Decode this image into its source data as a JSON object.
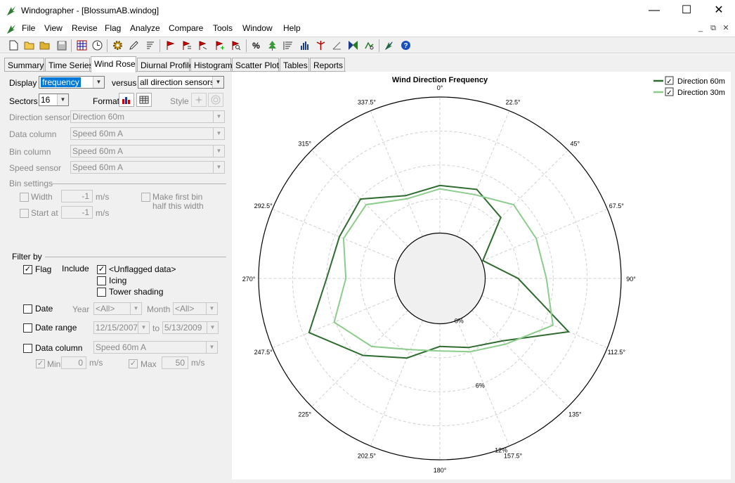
{
  "window": {
    "title": "Windographer - [BlossumAB.windog]",
    "minimize": "—",
    "maximize": "☐",
    "close": "✕",
    "mdi_min": "_",
    "mdi_restore": "⧉",
    "mdi_close": "✕"
  },
  "menu": [
    "File",
    "View",
    "Revise",
    "Flag",
    "Analyze",
    "Compare",
    "Tools",
    "Window",
    "Help"
  ],
  "toolbar_icons": [
    "new-file-icon",
    "open-folder-icon",
    "open-folder-icon",
    "save-icon",
    "grid-icon",
    "clock-icon",
    "gear-icon",
    "pencil-icon",
    "sort-icon",
    "flag-icon",
    "flag-select-icon",
    "flag-move-icon",
    "flag-add-icon",
    "flag-search-icon",
    "percent-icon",
    "tree-icon",
    "list-icon",
    "histogram-icon",
    "turbine-icon",
    "shear-icon",
    "compare-icon",
    "map-icon",
    "logo-icon",
    "help-icon"
  ],
  "tabs": [
    "Summary",
    "Time Series",
    "Wind Rose",
    "Diurnal Profile",
    "Histogram",
    "Scatter Plot",
    "Tables",
    "Reports"
  ],
  "active_tab": "Wind Rose",
  "controls": {
    "display_label": "Display",
    "display_value": "frequency",
    "versus_label": "versus",
    "versus_value": "all direction sensors",
    "sectors_label": "Sectors",
    "sectors_value": "16",
    "format_label": "Format",
    "style_label": "Style",
    "direction_sensor_label": "Direction sensor",
    "direction_sensor_value": "Direction 60m",
    "data_column_label": "Data column",
    "data_column_value": "Speed 60m A",
    "bin_column_label": "Bin column",
    "bin_column_value": "Speed 60m A",
    "speed_sensor_label": "Speed sensor",
    "speed_sensor_value": "Speed 60m A",
    "bin_settings_label": "Bin settings",
    "width_label": "Width",
    "width_value": "-1",
    "width_unit": "m/s",
    "start_at_label": "Start at",
    "start_at_value": "-1",
    "start_at_unit": "m/s",
    "make_first_bin_label_1": "Make first bin",
    "make_first_bin_label_2": "half this width"
  },
  "filter": {
    "title": "Filter by",
    "flag_label": "Flag",
    "include_label": "Include",
    "unflagged_label": "<Unflagged data>",
    "icing_label": "Icing",
    "tower_shading_label": "Tower shading",
    "date_label": "Date",
    "year_label": "Year",
    "year_value": "<All>",
    "month_label": "Month",
    "month_value": "<All>",
    "date_range_label": "Date range",
    "date_from": "12/15/2007",
    "to_label": "to",
    "date_to": "5/13/2009",
    "data_column_label": "Data column",
    "data_column_value": "Speed 60m A",
    "min_label": "Min",
    "min_value": "0",
    "min_unit": "m/s",
    "max_label": "Max",
    "max_value": "50",
    "max_unit": "m/s"
  },
  "chart_data": {
    "type": "polar-line",
    "title": "Wind Direction Frequency",
    "sectors": [
      "0°",
      "22.5°",
      "45°",
      "67.5°",
      "90°",
      "112.5°",
      "135°",
      "157.5°",
      "180°",
      "202.5°",
      "225°",
      "247.5°",
      "270°",
      "292.5°",
      "315°",
      "337.5°"
    ],
    "directions_deg": [
      0,
      22.5,
      45,
      67.5,
      90,
      112.5,
      135,
      157.5,
      180,
      202.5,
      225,
      247.5,
      270,
      292.5,
      315,
      337.5
    ],
    "radial_max": 12,
    "radial_ticks": [
      "0%",
      "6%",
      "12%"
    ],
    "hole_fraction": 0.25,
    "legend_position": "top-right",
    "series": [
      {
        "name": "Direction 60m",
        "color": "#2e6b2e",
        "values": [
          4.2,
          4.5,
          3.6,
          0.1,
          2.9,
          8.3,
          3.8,
          2.6,
          2.0,
          3.6,
          5.6,
          8.5,
          6.0,
          5.6,
          5.9,
          3.9
        ]
      },
      {
        "name": "Direction 30m",
        "color": "#8ccc8c",
        "values": [
          3.9,
          4.0,
          5.2,
          5.2,
          5.4,
          6.8,
          4.2,
          3.0,
          2.4,
          2.8,
          4.5,
          6.1,
          4.3,
          5.2,
          5.2,
          3.6
        ]
      }
    ]
  }
}
